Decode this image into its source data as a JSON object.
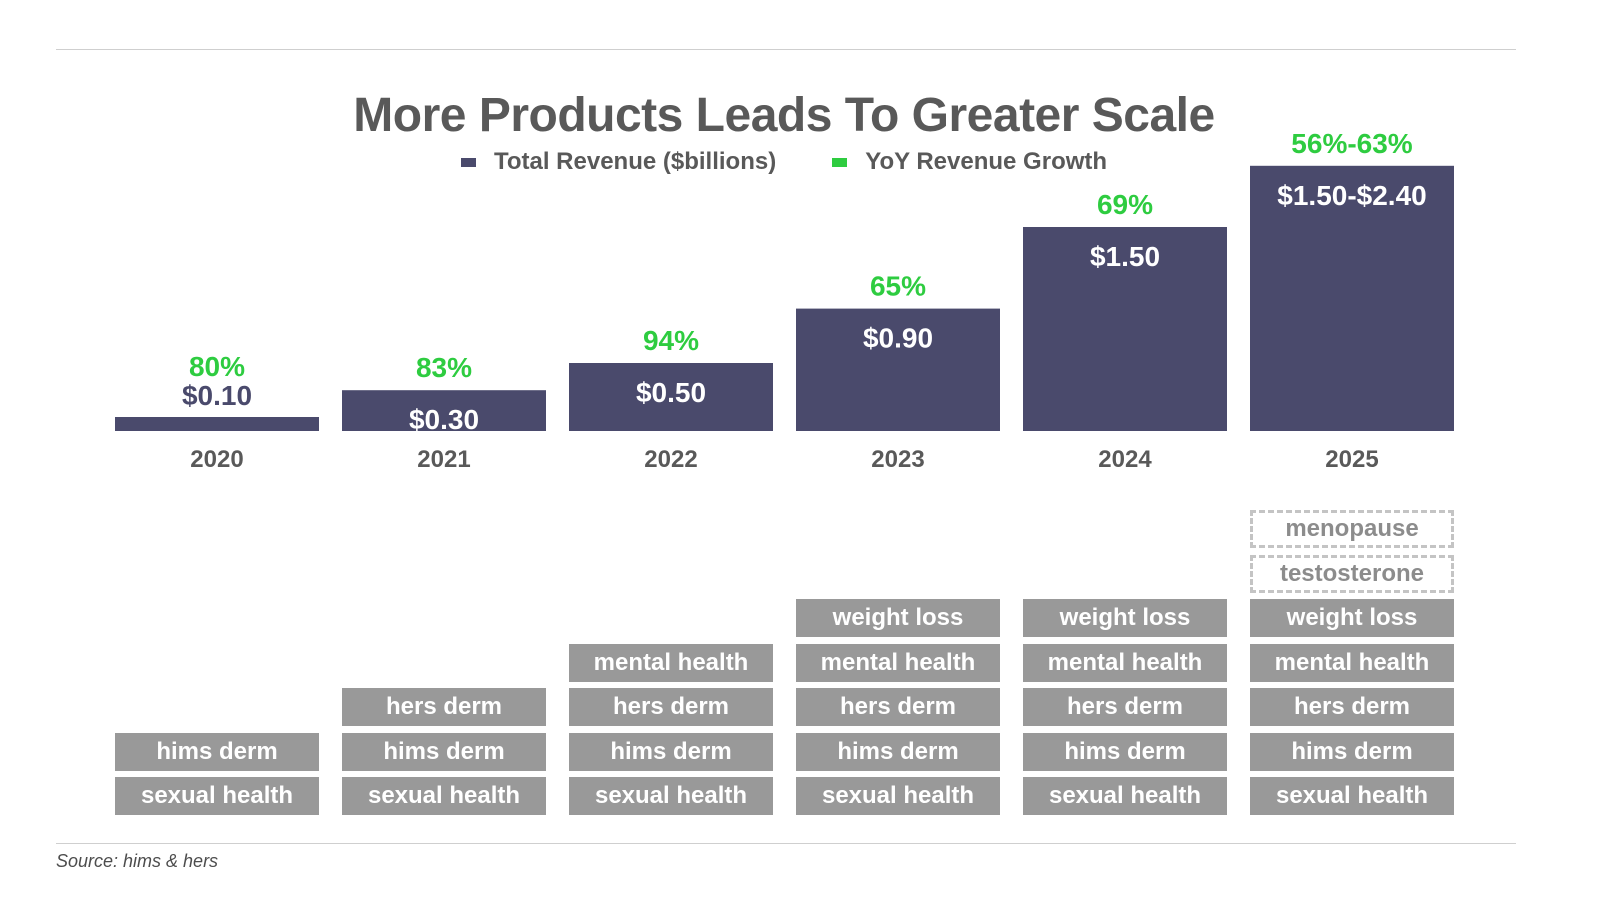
{
  "title": "More Products Leads To Greater Scale",
  "source": "Source: hims & hers",
  "colors": {
    "revenue": "#4a4a6c",
    "growth": "#2ecc40",
    "product": "#999999",
    "product_planned_border": "#c4c4c4",
    "text": "#595959"
  },
  "chart_data": {
    "type": "bar",
    "title": "More Products Leads To Greater Scale",
    "categories": [
      "2020",
      "2021",
      "2022",
      "2023",
      "2024",
      "2025"
    ],
    "series": [
      {
        "name": "Total Revenue ($billions)",
        "values": [
          0.1,
          0.3,
          0.5,
          0.9,
          1.5,
          1.95
        ],
        "labels": [
          "$0.10",
          "$0.30",
          "$0.50",
          "$0.90",
          "$1.50",
          "$1.50-$2.40"
        ]
      },
      {
        "name": "YoY Revenue Growth",
        "labels": [
          "80%",
          "83%",
          "94%",
          "65%",
          "69%",
          "56%-63%"
        ]
      }
    ],
    "legend": "top-center",
    "grid": false
  },
  "products": [
    {
      "year": "2020",
      "items": [
        {
          "label": "sexual health",
          "planned": false
        },
        {
          "label": "hims derm",
          "planned": false
        }
      ]
    },
    {
      "year": "2021",
      "items": [
        {
          "label": "sexual health",
          "planned": false
        },
        {
          "label": "hims derm",
          "planned": false
        },
        {
          "label": "hers derm",
          "planned": false
        }
      ]
    },
    {
      "year": "2022",
      "items": [
        {
          "label": "sexual health",
          "planned": false
        },
        {
          "label": "hims derm",
          "planned": false
        },
        {
          "label": "hers derm",
          "planned": false
        },
        {
          "label": "mental health",
          "planned": false
        }
      ]
    },
    {
      "year": "2023",
      "items": [
        {
          "label": "sexual health",
          "planned": false
        },
        {
          "label": "hims derm",
          "planned": false
        },
        {
          "label": "hers derm",
          "planned": false
        },
        {
          "label": "mental health",
          "planned": false
        },
        {
          "label": "weight loss",
          "planned": false
        }
      ]
    },
    {
      "year": "2024",
      "items": [
        {
          "label": "sexual health",
          "planned": false
        },
        {
          "label": "hims derm",
          "planned": false
        },
        {
          "label": "hers derm",
          "planned": false
        },
        {
          "label": "mental health",
          "planned": false
        },
        {
          "label": "weight loss",
          "planned": false
        }
      ]
    },
    {
      "year": "2025",
      "items": [
        {
          "label": "sexual health",
          "planned": false
        },
        {
          "label": "hims derm",
          "planned": false
        },
        {
          "label": "hers derm",
          "planned": false
        },
        {
          "label": "mental health",
          "planned": false
        },
        {
          "label": "weight loss",
          "planned": false
        },
        {
          "label": "testosterone",
          "planned": true
        },
        {
          "label": "menopause",
          "planned": true
        }
      ]
    }
  ]
}
